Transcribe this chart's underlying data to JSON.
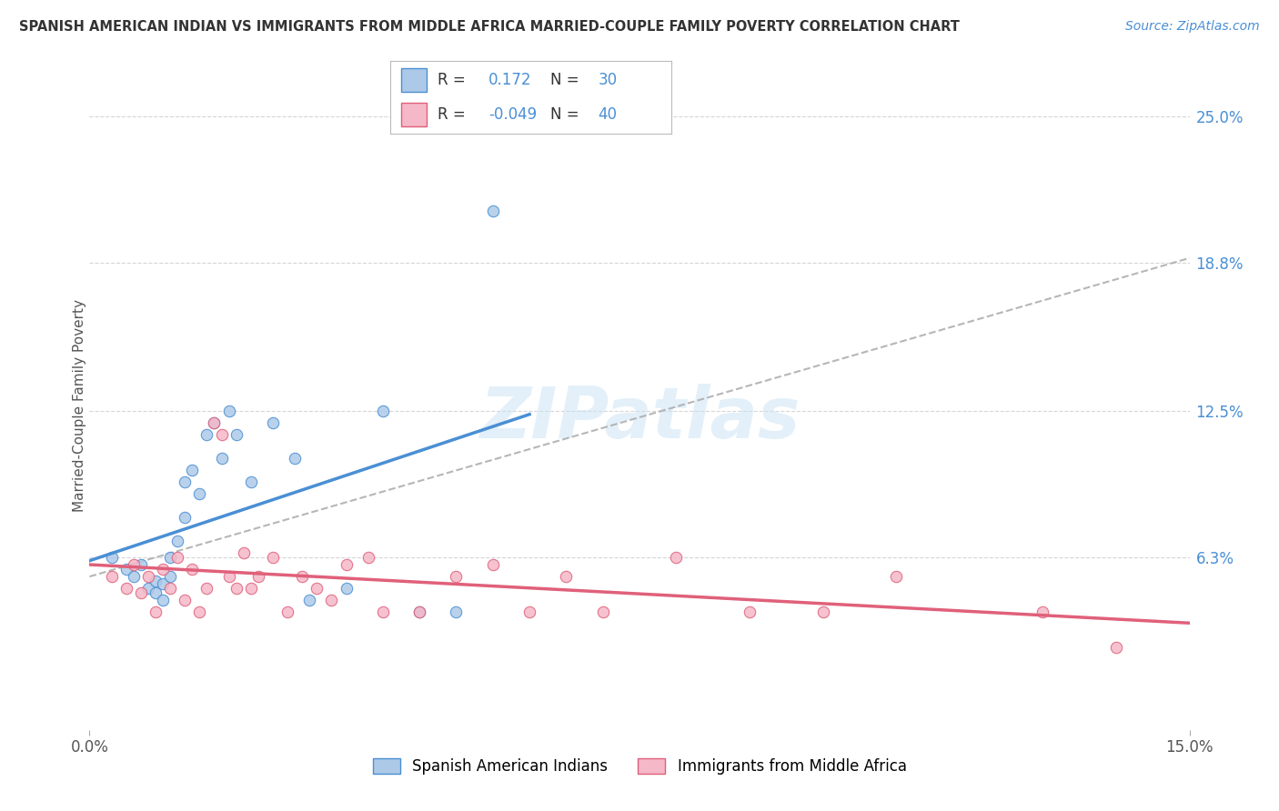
{
  "title": "SPANISH AMERICAN INDIAN VS IMMIGRANTS FROM MIDDLE AFRICA MARRIED-COUPLE FAMILY POVERTY CORRELATION CHART",
  "source": "Source: ZipAtlas.com",
  "ylabel": "Married-Couple Family Poverty",
  "xlim": [
    0.0,
    0.15
  ],
  "ylim": [
    -0.01,
    0.265
  ],
  "xtick_positions": [
    0.0,
    0.15
  ],
  "xtick_labels": [
    "0.0%",
    "15.0%"
  ],
  "ytick_values": [
    0.063,
    0.125,
    0.188,
    0.25
  ],
  "ytick_labels": [
    "6.3%",
    "12.5%",
    "18.8%",
    "25.0%"
  ],
  "legend_labels": [
    "Spanish American Indians",
    "Immigrants from Middle Africa"
  ],
  "legend_R": [
    "0.172",
    "-0.049"
  ],
  "legend_N": [
    "30",
    "40"
  ],
  "scatter1_color": "#adc9e8",
  "scatter2_color": "#f5b8c8",
  "line1_color": "#4a8fd4",
  "line2_color": "#e0607a",
  "trend_line_color": "#aaaaaa",
  "watermark": "ZIPatlas",
  "scatter1_x": [
    0.003,
    0.005,
    0.006,
    0.007,
    0.008,
    0.009,
    0.009,
    0.01,
    0.01,
    0.011,
    0.011,
    0.012,
    0.013,
    0.013,
    0.014,
    0.015,
    0.016,
    0.017,
    0.018,
    0.019,
    0.02,
    0.022,
    0.025,
    0.028,
    0.03,
    0.035,
    0.04,
    0.045,
    0.05,
    0.055
  ],
  "scatter1_y": [
    0.063,
    0.058,
    0.055,
    0.06,
    0.05,
    0.048,
    0.053,
    0.045,
    0.052,
    0.063,
    0.055,
    0.07,
    0.08,
    0.095,
    0.1,
    0.09,
    0.115,
    0.12,
    0.105,
    0.125,
    0.115,
    0.095,
    0.12,
    0.105,
    0.045,
    0.05,
    0.125,
    0.04,
    0.04,
    0.21
  ],
  "scatter2_x": [
    0.003,
    0.005,
    0.006,
    0.007,
    0.008,
    0.009,
    0.01,
    0.011,
    0.012,
    0.013,
    0.014,
    0.015,
    0.016,
    0.017,
    0.018,
    0.019,
    0.02,
    0.021,
    0.022,
    0.023,
    0.025,
    0.027,
    0.029,
    0.031,
    0.033,
    0.035,
    0.038,
    0.04,
    0.045,
    0.05,
    0.055,
    0.06,
    0.065,
    0.07,
    0.08,
    0.09,
    0.1,
    0.11,
    0.13,
    0.14
  ],
  "scatter2_y": [
    0.055,
    0.05,
    0.06,
    0.048,
    0.055,
    0.04,
    0.058,
    0.05,
    0.063,
    0.045,
    0.058,
    0.04,
    0.05,
    0.12,
    0.115,
    0.055,
    0.05,
    0.065,
    0.05,
    0.055,
    0.063,
    0.04,
    0.055,
    0.05,
    0.045,
    0.06,
    0.063,
    0.04,
    0.04,
    0.055,
    0.06,
    0.04,
    0.055,
    0.04,
    0.063,
    0.04,
    0.04,
    0.055,
    0.04,
    0.025
  ],
  "background_color": "#ffffff",
  "grid_color": "#cccccc"
}
